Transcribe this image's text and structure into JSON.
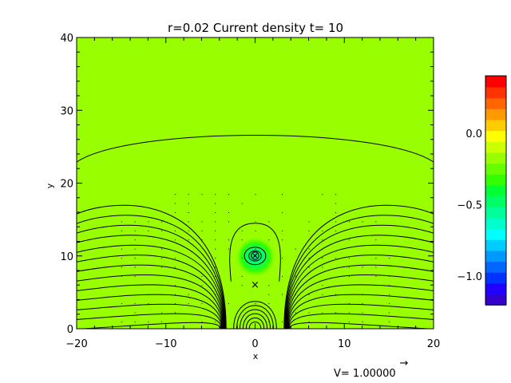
{
  "chart_data": {
    "type": "heatmap",
    "title": "r=0.02 Current density t= 10",
    "xlabel": "x",
    "ylabel": "y",
    "xlim": [
      -20,
      20
    ],
    "ylim": [
      0,
      40
    ],
    "xticks": [
      -20,
      -10,
      0,
      10,
      20
    ],
    "yticks": [
      0,
      10,
      20,
      30,
      40
    ],
    "xtick_labels": [
      "−20",
      "−10",
      "0",
      "10",
      "20"
    ],
    "ytick_labels": [
      "0",
      "10",
      "20",
      "30",
      "40"
    ],
    "background_value": 0.0,
    "background_color": "#99ff00",
    "features": [
      {
        "label": "O-point (flux rope)",
        "x": 0,
        "y": 10,
        "symbol": "⊗"
      },
      {
        "label": "X-point",
        "x": 0,
        "y": 6,
        "symbol": "×"
      }
    ],
    "colorbar": {
      "min": -1.2,
      "max": 0.4,
      "ticks": [
        0.0,
        -0.5,
        -1.0
      ],
      "tick_labels": [
        "0.0",
        "−0.5",
        "−1.0"
      ],
      "colors": [
        "#3300cc",
        "#2200ff",
        "#0033ff",
        "#0066ff",
        "#0099ff",
        "#00ccff",
        "#00ffff",
        "#00ffcc",
        "#00ff99",
        "#00ff66",
        "#00ff33",
        "#33ff00",
        "#66ff00",
        "#99ff00",
        "#ccff00",
        "#ffff00",
        "#ffcc00",
        "#ff9900",
        "#ff6600",
        "#ff3300",
        "#ff0000"
      ]
    },
    "vector_reference": {
      "label": "V= 1.00000",
      "arrow": "→"
    }
  }
}
